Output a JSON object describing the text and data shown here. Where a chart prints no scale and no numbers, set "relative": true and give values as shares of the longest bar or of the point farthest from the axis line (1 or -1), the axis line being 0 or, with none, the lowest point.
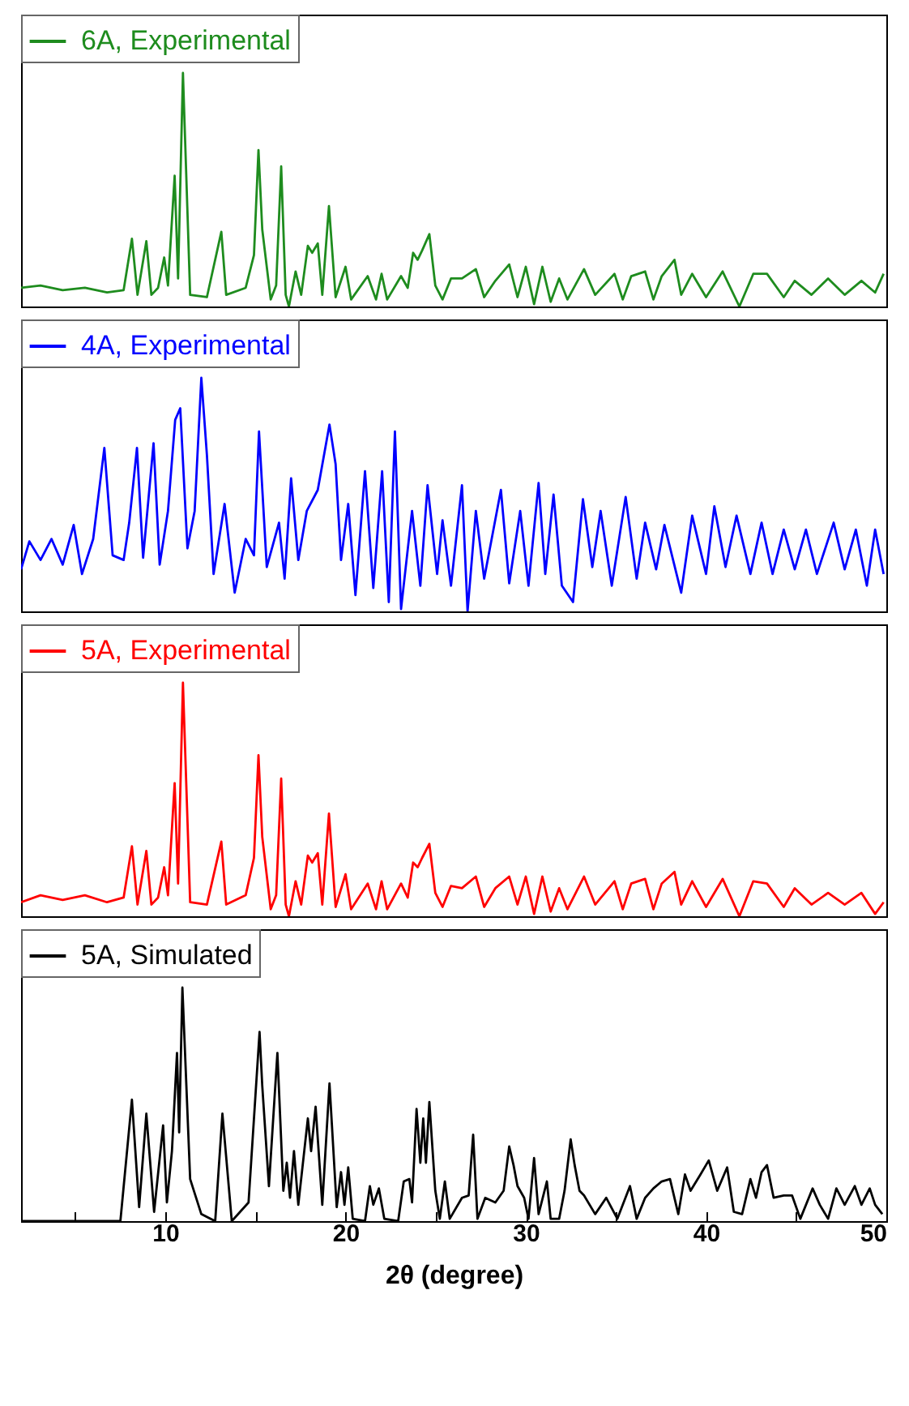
{
  "chart_data": [
    {
      "type": "line",
      "relative": true,
      "xlim": [
        2,
        50
      ],
      "tick_labels": false,
      "legend": "top left",
      "series": [
        {
          "name": "6A, Experimental",
          "color": "#1e8c1e",
          "x": [
            2,
            3.08,
            4.31,
            5.54,
            6.77,
            7.69,
            8.15,
            8.46,
            8.95,
            9.23,
            9.6,
            9.94,
            10.15,
            10.52,
            10.71,
            10.98,
            11.38,
            12.31,
            13.11,
            13.38,
            14.46,
            14.92,
            15.17,
            15.38,
            15.85,
            16.15,
            16.43,
            16.68,
            16.86,
            17.23,
            17.54,
            17.91,
            18.15,
            18.46,
            18.71,
            19.08,
            19.45,
            20.0,
            20.31,
            21.23,
            21.69,
            22.0,
            22.31,
            23.08,
            23.45,
            23.75,
            24.0,
            24.25,
            24.65,
            24.98,
            25.38,
            25.85,
            26.46,
            27.23,
            27.69,
            28.31,
            29.08,
            29.54,
            30.0,
            30.46,
            30.92,
            31.38,
            31.85,
            32.31,
            33.23,
            33.85,
            34.92,
            35.38,
            35.85,
            36.62,
            37.08,
            37.54,
            38.25,
            38.62,
            39.23,
            40.0,
            40.92,
            41.85,
            42.62,
            43.38,
            44.31,
            44.92,
            45.85,
            46.77,
            47.69,
            48.62,
            49.38,
            49.85
          ],
          "values": [
            0.08,
            0.09,
            0.07,
            0.08,
            0.06,
            0.07,
            0.29,
            0.05,
            0.28,
            0.05,
            0.08,
            0.21,
            0.09,
            0.56,
            0.12,
            1,
            0.05,
            0.04,
            0.32,
            0.05,
            0.08,
            0.22,
            0.67,
            0.33,
            0.03,
            0.09,
            0.6,
            0.05,
            0,
            0.15,
            0.05,
            0.26,
            0.23,
            0.27,
            0.05,
            0.43,
            0.04,
            0.17,
            0.03,
            0.13,
            0.03,
            0.14,
            0.03,
            0.13,
            0.08,
            0.23,
            0.2,
            0.24,
            0.31,
            0.09,
            0.03,
            0.12,
            0.12,
            0.16,
            0.04,
            0.11,
            0.18,
            0.04,
            0.17,
            0.01,
            0.17,
            0.02,
            0.12,
            0.03,
            0.16,
            0.05,
            0.14,
            0.03,
            0.13,
            0.15,
            0.03,
            0.13,
            0.2,
            0.05,
            0.14,
            0.04,
            0.15,
            0,
            0.14,
            0.14,
            0.04,
            0.11,
            0.05,
            0.12,
            0.05,
            0.11,
            0.06,
            0.14
          ]
        }
      ]
    },
    {
      "type": "line",
      "relative": true,
      "xlim": [
        2,
        50
      ],
      "tick_labels": false,
      "legend": "top left",
      "series": [
        {
          "name": "4A, Experimental",
          "color": "#0000ff",
          "x": [
            2,
            2.46,
            3.08,
            3.69,
            4.31,
            4.92,
            5.38,
            6.0,
            6.62,
            7.08,
            7.69,
            8.0,
            8.43,
            8.77,
            9.35,
            9.69,
            10.15,
            10.55,
            10.83,
            11.23,
            11.63,
            12.0,
            12.31,
            12.68,
            13.29,
            13.85,
            14.46,
            14.92,
            15.2,
            15.63,
            16.31,
            16.62,
            16.98,
            17.38,
            17.85,
            18.46,
            19.11,
            19.45,
            19.75,
            20.15,
            20.55,
            21.08,
            21.54,
            22.03,
            22.4,
            22.74,
            23.08,
            23.69,
            24.15,
            24.55,
            25.08,
            25.38,
            25.85,
            26.46,
            26.77,
            27.23,
            27.69,
            28.62,
            29.08,
            29.69,
            30.15,
            30.71,
            31.08,
            31.54,
            32.0,
            32.62,
            33.17,
            33.69,
            34.15,
            34.77,
            35.54,
            36.15,
            36.62,
            37.23,
            37.69,
            38.62,
            39.23,
            40.0,
            40.46,
            41.08,
            41.69,
            42.46,
            43.08,
            43.69,
            44.31,
            44.92,
            45.54,
            46.15,
            47.08,
            47.69,
            48.31,
            48.92,
            49.38,
            49.85
          ],
          "values": [
            0.18,
            0.3,
            0.22,
            0.31,
            0.2,
            0.37,
            0.16,
            0.31,
            0.7,
            0.24,
            0.22,
            0.38,
            0.7,
            0.23,
            0.72,
            0.2,
            0.43,
            0.82,
            0.87,
            0.27,
            0.43,
            1,
            0.67,
            0.16,
            0.46,
            0.08,
            0.31,
            0.24,
            0.77,
            0.19,
            0.38,
            0.14,
            0.57,
            0.22,
            0.43,
            0.52,
            0.8,
            0.63,
            0.22,
            0.46,
            0.07,
            0.6,
            0.1,
            0.6,
            0.04,
            0.77,
            0.01,
            0.43,
            0.11,
            0.54,
            0.16,
            0.39,
            0.11,
            0.54,
            0,
            0.43,
            0.14,
            0.52,
            0.12,
            0.43,
            0.11,
            0.55,
            0.16,
            0.5,
            0.11,
            0.04,
            0.48,
            0.19,
            0.43,
            0.11,
            0.49,
            0.14,
            0.38,
            0.18,
            0.37,
            0.08,
            0.41,
            0.16,
            0.45,
            0.19,
            0.41,
            0.16,
            0.38,
            0.16,
            0.35,
            0.18,
            0.35,
            0.16,
            0.38,
            0.18,
            0.35,
            0.11,
            0.35,
            0.16
          ]
        }
      ]
    },
    {
      "type": "line",
      "relative": true,
      "xlim": [
        2,
        50
      ],
      "tick_labels": false,
      "legend": "top left",
      "series": [
        {
          "name": "5A, Experimental",
          "color": "#ff0000",
          "x": [
            2,
            3.08,
            4.31,
            5.54,
            6.77,
            7.69,
            8.15,
            8.46,
            8.95,
            9.23,
            9.6,
            9.94,
            10.15,
            10.52,
            10.71,
            10.98,
            11.38,
            12.31,
            13.11,
            13.38,
            14.46,
            14.92,
            15.17,
            15.38,
            15.85,
            16.15,
            16.43,
            16.68,
            16.86,
            17.23,
            17.54,
            17.91,
            18.15,
            18.46,
            18.71,
            19.08,
            19.45,
            20.0,
            20.31,
            21.23,
            21.69,
            22.0,
            22.31,
            23.08,
            23.45,
            23.75,
            24.0,
            24.25,
            24.65,
            24.98,
            25.38,
            25.85,
            26.46,
            27.23,
            27.69,
            28.31,
            29.08,
            29.54,
            30.0,
            30.46,
            30.92,
            31.38,
            31.85,
            32.31,
            33.23,
            33.85,
            34.92,
            35.38,
            35.85,
            36.62,
            37.08,
            37.54,
            38.25,
            38.62,
            39.23,
            40.0,
            40.92,
            41.85,
            42.62,
            43.38,
            44.31,
            44.92,
            45.85,
            46.77,
            47.69,
            48.62,
            49.38,
            49.85
          ],
          "values": [
            0.06,
            0.09,
            0.07,
            0.09,
            0.06,
            0.08,
            0.3,
            0.05,
            0.28,
            0.05,
            0.08,
            0.21,
            0.09,
            0.57,
            0.14,
            1,
            0.06,
            0.05,
            0.32,
            0.05,
            0.09,
            0.25,
            0.69,
            0.34,
            0.03,
            0.09,
            0.59,
            0.05,
            0,
            0.15,
            0.05,
            0.26,
            0.23,
            0.27,
            0.05,
            0.44,
            0.04,
            0.18,
            0.03,
            0.14,
            0.03,
            0.15,
            0.03,
            0.14,
            0.08,
            0.23,
            0.21,
            0.25,
            0.31,
            0.1,
            0.04,
            0.13,
            0.12,
            0.17,
            0.04,
            0.12,
            0.17,
            0.05,
            0.17,
            0.01,
            0.17,
            0.02,
            0.12,
            0.03,
            0.17,
            0.05,
            0.15,
            0.03,
            0.14,
            0.16,
            0.03,
            0.14,
            0.19,
            0.05,
            0.15,
            0.04,
            0.16,
            0,
            0.15,
            0.14,
            0.04,
            0.12,
            0.05,
            0.1,
            0.05,
            0.1,
            0.01,
            0.06
          ]
        }
      ]
    },
    {
      "type": "line",
      "relative": true,
      "xlim": [
        2,
        50
      ],
      "xticks": [
        {
          "value": 5,
          "label": null
        },
        10,
        {
          "value": 15,
          "label": null
        },
        20,
        {
          "value": 25,
          "label": null
        },
        30,
        {
          "value": 35,
          "label": null
        },
        40,
        {
          "value": 45,
          "label": null
        },
        50
      ],
      "xlabel": "2θ (degree)",
      "tick_labels": "x",
      "legend": "top left",
      "series": [
        {
          "name": "5A, Simulated",
          "color": "#000000",
          "x": [
            2,
            7.51,
            8.15,
            8.55,
            8.95,
            9.38,
            9.88,
            10.09,
            10.37,
            10.65,
            10.77,
            10.95,
            11.38,
            12.0,
            12.77,
            13.17,
            13.69,
            14.62,
            15.23,
            15.38,
            15.75,
            16.22,
            16.55,
            16.74,
            16.92,
            17.14,
            17.38,
            17.91,
            18.09,
            18.34,
            18.71,
            19.11,
            19.51,
            19.75,
            19.94,
            20.15,
            20.4,
            21.08,
            21.35,
            21.54,
            21.85,
            22.15,
            22.92,
            23.23,
            23.54,
            23.69,
            23.94,
            24.15,
            24.31,
            24.46,
            24.65,
            24.98,
            25.23,
            25.51,
            25.78,
            26.46,
            26.83,
            27.08,
            27.32,
            27.75,
            28.31,
            28.77,
            29.08,
            29.32,
            29.54,
            29.91,
            30.15,
            30.46,
            30.71,
            31.17,
            31.38,
            31.85,
            32.15,
            32.49,
            32.71,
            32.98,
            33.23,
            33.85,
            34.46,
            35.08,
            35.78,
            36.15,
            36.62,
            37.08,
            37.54,
            38.0,
            38.46,
            38.83,
            39.14,
            39.69,
            40.15,
            40.62,
            41.17,
            41.54,
            42.0,
            42.46,
            42.77,
            43.08,
            43.38,
            43.75,
            44.31,
            44.77,
            45.23,
            45.91,
            46.31,
            46.77,
            47.23,
            47.69,
            48.25,
            48.62,
            49.08,
            49.38,
            49.78
          ],
          "values": [
            0,
            0,
            0.52,
            0.06,
            0.46,
            0.04,
            0.41,
            0.08,
            0.3,
            0.72,
            0.38,
            1,
            0.18,
            0.03,
            0,
            0.46,
            0,
            0.08,
            0.81,
            0.58,
            0.15,
            0.72,
            0.13,
            0.25,
            0.1,
            0.3,
            0.07,
            0.44,
            0.3,
            0.49,
            0.07,
            0.59,
            0.06,
            0.21,
            0.07,
            0.23,
            0.01,
            0,
            0.15,
            0.07,
            0.14,
            0.01,
            0,
            0.17,
            0.18,
            0.08,
            0.48,
            0.25,
            0.44,
            0.25,
            0.51,
            0.13,
            0.01,
            0.17,
            0.01,
            0.1,
            0.11,
            0.37,
            0.01,
            0.1,
            0.08,
            0.13,
            0.32,
            0.24,
            0.15,
            0.1,
            0.01,
            0.27,
            0.03,
            0.17,
            0.01,
            0.01,
            0.13,
            0.35,
            0.24,
            0.13,
            0.11,
            0.03,
            0.1,
            0.01,
            0.15,
            0.01,
            0.1,
            0.14,
            0.17,
            0.18,
            0.03,
            0.2,
            0.13,
            0.2,
            0.26,
            0.13,
            0.23,
            0.04,
            0.03,
            0.18,
            0.1,
            0.21,
            0.24,
            0.1,
            0.11,
            0.11,
            0.01,
            0.14,
            0.07,
            0.01,
            0.14,
            0.07,
            0.15,
            0.07,
            0.14,
            0.07,
            0.03
          ]
        }
      ]
    }
  ]
}
